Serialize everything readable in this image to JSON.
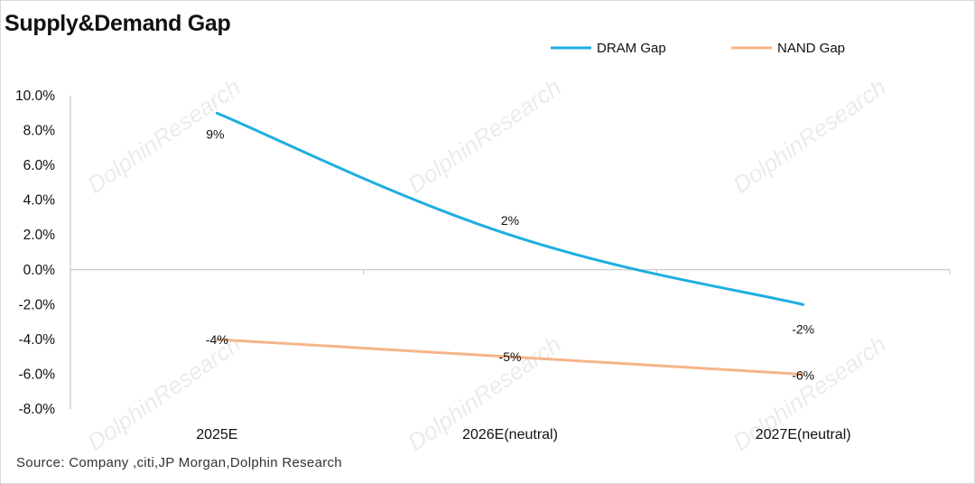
{
  "title": "Supply&Demand Gap",
  "source": "Source:  Company  ,citi,JP  Morgan,Dolphin  Research",
  "watermark": "DolphinResearch",
  "chart_data": {
    "type": "line",
    "title": "Supply&Demand Gap",
    "categories": [
      "2025E",
      "2026E(neutral)",
      "2027E(neutral)"
    ],
    "series": [
      {
        "name": "DRAM Gap",
        "color": "#1eaee0",
        "values": [
          9,
          2,
          -2
        ],
        "labels": [
          "9%",
          "2%",
          "-2%"
        ]
      },
      {
        "name": "NAND Gap",
        "color": "#f5b58a",
        "values": [
          -4,
          -5,
          -6
        ],
        "labels": [
          "-4%",
          "-5%",
          "-6%"
        ]
      }
    ],
    "ylim": [
      -8,
      10
    ],
    "yticks": [
      10,
      8,
      6,
      4,
      2,
      0,
      -2,
      -4,
      -6,
      -8
    ],
    "ytick_labels": [
      "10.0%",
      "8.0%",
      "6.0%",
      "4.0%",
      "2.0%",
      "0.0%",
      "-2.0%",
      "-4.0%",
      "-6.0%",
      "-8.0%"
    ],
    "xlabel": "",
    "ylabel": "",
    "grid": false,
    "legend_position": "top-right"
  }
}
